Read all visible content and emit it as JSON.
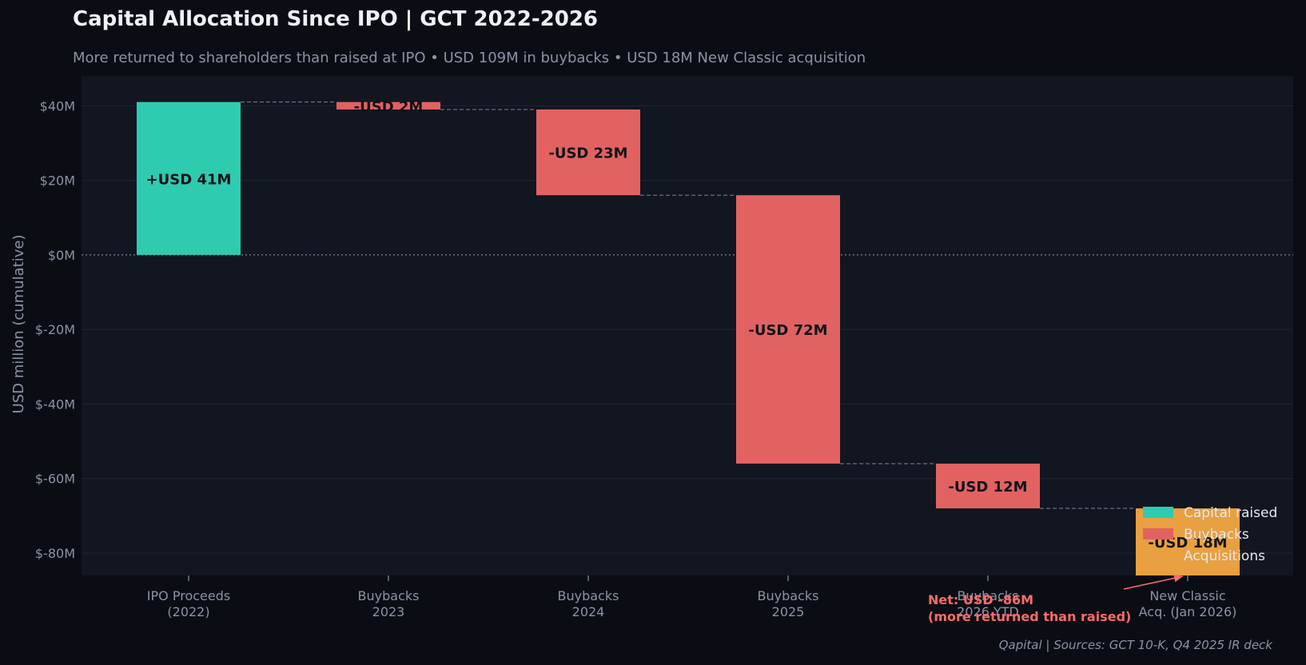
{
  "header": {
    "title": "Capital Allocation Since IPO  |  GCT 2022-2026",
    "subtitle": "More returned to shareholders than raised at IPO  •  USD 109M in buybacks  •  USD 18M New Classic acquisition"
  },
  "footer": {
    "source": "Qapital  |  Sources: GCT 10-K, Q4 2025 IR deck"
  },
  "chart_data": {
    "type": "bar",
    "subtype": "waterfall",
    "ylabel": "USD million (cumulative)",
    "ylim": [
      -86,
      48
    ],
    "yticks": [
      40,
      20,
      0,
      -20,
      -40,
      -60,
      -80
    ],
    "ytick_labels": [
      "$40M",
      "$20M",
      "$0M",
      "$-20M",
      "$-40M",
      "$-60M",
      "$-80M"
    ],
    "grid": true,
    "legend_position": "bottom-right",
    "colors": {
      "Capital raised": "#2ecbb0",
      "Buybacks": "#e26262",
      "Acquisitions": "#e8a040",
      "background": "#121620",
      "page": "#0a0d14",
      "annotation": "#ff6b6b"
    },
    "categories": [
      [
        "IPO Proceeds",
        "(2022)"
      ],
      [
        "Buybacks",
        "2023"
      ],
      [
        "Buybacks",
        "2024"
      ],
      [
        "Buybacks",
        "2025"
      ],
      [
        "Buybacks",
        "2026 YTD"
      ],
      [
        "New Classic",
        "Acq. (Jan 2026)"
      ]
    ],
    "values": [
      41,
      -2,
      -23,
      -72,
      -12,
      -18
    ],
    "value_labels": [
      "+USD 41M",
      "-USD 2M",
      "-USD 23M",
      "-USD 72M",
      "-USD 12M",
      "-USD 18M"
    ],
    "bar_series": [
      "Capital raised",
      "Buybacks",
      "Buybacks",
      "Buybacks",
      "Buybacks",
      "Acquisitions"
    ],
    "legend": [
      "Capital raised",
      "Buybacks",
      "Acquisitions"
    ],
    "annotation": {
      "lines": [
        "Net: USD -86M",
        "(more returned than raised)"
      ],
      "target_index": 5,
      "target_value": -86
    }
  }
}
